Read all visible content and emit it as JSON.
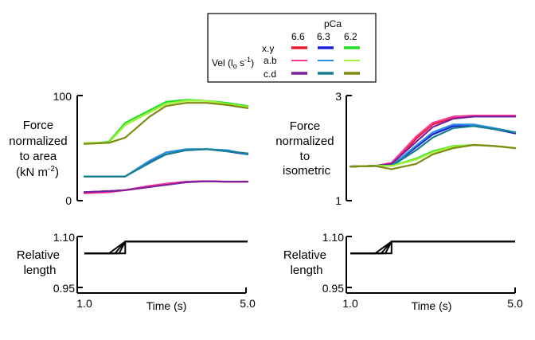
{
  "chart_data": [
    {
      "type": "line",
      "panel": "force-area",
      "ylabel_lines": [
        "Force",
        "normalized",
        "to area",
        "(kN m",
        "-2",
        ")"
      ],
      "yticks": [
        "100",
        "0"
      ],
      "ylim": [
        0,
        100
      ],
      "xlim": [
        1.0,
        5.0
      ],
      "series": [
        {
          "group": "pCa 6.6",
          "code": "x",
          "color": "#e8192c",
          "x": [
            1.0,
            1.6,
            2.0,
            2.6,
            3.0,
            3.5,
            4.0,
            4.5,
            5.0
          ],
          "values": [
            8,
            9,
            10,
            14,
            16,
            18,
            18.5,
            18,
            18
          ]
        },
        {
          "group": "pCa 6.6",
          "code": "y",
          "color": "#e8192c",
          "x": [
            1.0,
            1.6,
            2.0,
            2.6,
            3.0,
            3.5,
            4.0,
            4.5,
            5.0
          ],
          "values": [
            8,
            9,
            10,
            13,
            16,
            18,
            18.5,
            18,
            18
          ]
        },
        {
          "group": "pCa 6.6",
          "code": "a",
          "color": "#ff3a94",
          "x": [
            1.0,
            1.6,
            2.0,
            2.6,
            3.0,
            3.5,
            4.0,
            4.5,
            5.0
          ],
          "values": [
            7,
            8,
            10,
            14,
            16,
            18,
            18.5,
            18,
            18
          ]
        },
        {
          "group": "pCa 6.6",
          "code": "c",
          "color": "#7b1fa2",
          "x": [
            1.0,
            1.6,
            2.0,
            2.6,
            3.0,
            3.5,
            4.0,
            4.5,
            5.0
          ],
          "values": [
            8,
            9,
            10,
            13,
            15,
            17.5,
            18.5,
            18,
            18
          ]
        },
        {
          "group": "pCa 6.3",
          "code": "x",
          "color": "#1b1fd8",
          "x": [
            1.0,
            1.6,
            2.0,
            2.6,
            3.0,
            3.5,
            4.0,
            4.5,
            5.0
          ],
          "values": [
            23,
            23,
            23,
            37,
            44,
            48,
            49,
            47,
            44
          ]
        },
        {
          "group": "pCa 6.3",
          "code": "a",
          "color": "#2a8de6",
          "x": [
            1.0,
            1.6,
            2.0,
            2.6,
            3.0,
            3.5,
            4.0,
            4.5,
            5.0
          ],
          "values": [
            23,
            23,
            23,
            38,
            46,
            49,
            49,
            48,
            44
          ]
        },
        {
          "group": "pCa 6.3",
          "code": "c",
          "color": "#15808a",
          "x": [
            1.0,
            1.6,
            2.0,
            2.6,
            3.0,
            3.5,
            4.0,
            4.5,
            5.0
          ],
          "values": [
            23,
            23,
            23,
            36,
            44,
            48,
            49,
            47,
            45
          ]
        },
        {
          "group": "pCa 6.2",
          "code": "x",
          "color": "#22e022",
          "x": [
            1.0,
            1.6,
            2.0,
            2.6,
            3.0,
            3.5,
            4.0,
            4.5,
            5.0
          ],
          "values": [
            54,
            56,
            74,
            86,
            94,
            96,
            95,
            93,
            90
          ]
        },
        {
          "group": "pCa 6.2",
          "code": "a",
          "color": "#a4f23a",
          "x": [
            1.0,
            1.6,
            2.0,
            2.6,
            3.0,
            3.5,
            4.0,
            4.5,
            5.0
          ],
          "values": [
            55,
            55,
            72,
            84,
            92,
            95,
            95,
            92,
            89
          ]
        },
        {
          "group": "pCa 6.2",
          "code": "c",
          "color": "#7e8a10",
          "x": [
            1.0,
            1.6,
            2.0,
            2.6,
            3.0,
            3.5,
            4.0,
            4.5,
            5.0
          ],
          "values": [
            54,
            55,
            60,
            80,
            90,
            93,
            93,
            91,
            88
          ]
        }
      ]
    },
    {
      "type": "line",
      "panel": "force-isometric",
      "ylabel_lines": [
        "Force",
        "normalized",
        "to",
        "isometric"
      ],
      "yticks": [
        "3",
        "1"
      ],
      "ylim": [
        1,
        3
      ],
      "xlim": [
        1.0,
        5.0
      ],
      "series": [
        {
          "group": "pCa 6.6",
          "code": "x",
          "color": "#e8192c",
          "x": [
            1.0,
            1.6,
            2.0,
            2.6,
            3.0,
            3.5,
            4.0,
            4.5,
            5.0
          ],
          "values": [
            1.65,
            1.66,
            1.68,
            2.18,
            2.45,
            2.58,
            2.62,
            2.62,
            2.62
          ]
        },
        {
          "group": "pCa 6.6",
          "code": "a",
          "color": "#ff3a94",
          "x": [
            1.0,
            1.6,
            2.0,
            2.6,
            3.0,
            3.5,
            4.0,
            4.5,
            5.0
          ],
          "values": [
            1.65,
            1.66,
            1.72,
            2.22,
            2.48,
            2.6,
            2.62,
            2.62,
            2.62
          ]
        },
        {
          "group": "pCa 6.6",
          "code": "c",
          "color": "#7b1fa2",
          "x": [
            1.0,
            1.6,
            2.0,
            2.6,
            3.0,
            3.5,
            4.0,
            4.5,
            5.0
          ],
          "values": [
            1.65,
            1.66,
            1.7,
            2.12,
            2.4,
            2.56,
            2.6,
            2.6,
            2.6
          ]
        },
        {
          "group": "pCa 6.3",
          "code": "x",
          "color": "#1b1fd8",
          "x": [
            1.0,
            1.6,
            2.0,
            2.6,
            3.0,
            3.5,
            4.0,
            4.5,
            5.0
          ],
          "values": [
            1.65,
            1.66,
            1.66,
            2.02,
            2.26,
            2.42,
            2.42,
            2.36,
            2.28
          ]
        },
        {
          "group": "pCa 6.3",
          "code": "a",
          "color": "#2a8de6",
          "x": [
            1.0,
            1.6,
            2.0,
            2.6,
            3.0,
            3.5,
            4.0,
            4.5,
            5.0
          ],
          "values": [
            1.65,
            1.66,
            1.66,
            2.05,
            2.3,
            2.45,
            2.45,
            2.38,
            2.3
          ]
        },
        {
          "group": "pCa 6.3",
          "code": "c",
          "color": "#15808a",
          "x": [
            1.0,
            1.6,
            2.0,
            2.6,
            3.0,
            3.5,
            4.0,
            4.5,
            5.0
          ],
          "values": [
            1.65,
            1.66,
            1.66,
            1.96,
            2.2,
            2.38,
            2.42,
            2.36,
            2.3
          ]
        },
        {
          "group": "pCa 6.2",
          "code": "x",
          "color": "#22e022",
          "x": [
            1.0,
            1.6,
            2.0,
            2.6,
            3.0,
            3.5,
            4.0,
            4.5,
            5.0
          ],
          "values": [
            1.65,
            1.66,
            1.66,
            1.8,
            1.94,
            2.04,
            2.06,
            2.04,
            2.0
          ]
        },
        {
          "group": "pCa 6.2",
          "code": "a",
          "color": "#a4f23a",
          "x": [
            1.0,
            1.6,
            2.0,
            2.6,
            3.0,
            3.5,
            4.0,
            4.5,
            5.0
          ],
          "values": [
            1.65,
            1.66,
            1.66,
            1.78,
            1.92,
            2.03,
            2.06,
            2.04,
            2.0
          ]
        },
        {
          "group": "pCa 6.2",
          "code": "c",
          "color": "#7e8a10",
          "x": [
            1.0,
            1.6,
            2.0,
            2.6,
            3.0,
            3.5,
            4.0,
            4.5,
            5.0
          ],
          "values": [
            1.65,
            1.66,
            1.6,
            1.7,
            1.88,
            2.0,
            2.06,
            2.04,
            2.0
          ]
        }
      ]
    },
    {
      "type": "line",
      "panel": "length-left",
      "ylabel_lines": [
        "Relative",
        "length"
      ],
      "yticks": [
        "1.10",
        "0.95"
      ],
      "xticks": [
        "1.0",
        "5.0"
      ],
      "xlabel": "Time (s)",
      "ylim": [
        0.95,
        1.1
      ],
      "xlim": [
        1.0,
        5.0
      ],
      "series": [
        {
          "x": [
            1.0,
            1.6,
            2.0,
            2.0,
            5.0
          ],
          "values": [
            1.05,
            1.05,
            1.05,
            1.085,
            1.085
          ]
        },
        {
          "x": [
            1.0,
            1.6,
            2.0,
            5.0
          ],
          "values": [
            1.05,
            1.05,
            1.085,
            1.085
          ]
        },
        {
          "x": [
            1.0,
            1.75,
            2.0,
            5.0
          ],
          "values": [
            1.05,
            1.05,
            1.085,
            1.085
          ]
        },
        {
          "x": [
            1.0,
            1.85,
            2.0,
            5.0
          ],
          "values": [
            1.05,
            1.05,
            1.085,
            1.085
          ]
        }
      ]
    },
    {
      "type": "line",
      "panel": "length-right",
      "ylabel_lines": [
        "Relative",
        "length"
      ],
      "yticks": [
        "1.10",
        "0.95"
      ],
      "xticks": [
        "1.0",
        "5.0"
      ],
      "xlabel": "Time (s)",
      "ylim": [
        0.95,
        1.1
      ],
      "xlim": [
        1.0,
        5.0
      ],
      "series": [
        {
          "x": [
            1.0,
            1.6,
            2.0,
            2.0,
            5.0
          ],
          "values": [
            1.05,
            1.05,
            1.05,
            1.085,
            1.085
          ]
        },
        {
          "x": [
            1.0,
            1.6,
            2.0,
            5.0
          ],
          "values": [
            1.05,
            1.05,
            1.085,
            1.085
          ]
        },
        {
          "x": [
            1.0,
            1.75,
            2.0,
            5.0
          ],
          "values": [
            1.05,
            1.05,
            1.085,
            1.085
          ]
        },
        {
          "x": [
            1.0,
            1.85,
            2.0,
            5.0
          ],
          "values": [
            1.05,
            1.05,
            1.085,
            1.085
          ]
        }
      ]
    }
  ],
  "legend": {
    "pca_label": "pCa",
    "pca_values": [
      "6.6",
      "6.3",
      "6.2"
    ],
    "vel_label_prefix": "Vel (l",
    "vel_label_sub": "o",
    "vel_label_mid": " s",
    "vel_label_sup": "-1",
    "vel_label_suffix": ")",
    "rows": [
      {
        "label": "x.y",
        "colors": [
          "#e8192c",
          "#1b1fd8",
          "#22e022"
        ]
      },
      {
        "label": "a.b",
        "colors": [
          "#ff3a94",
          "#2a8de6",
          "#a4f23a"
        ]
      },
      {
        "label": "c.d",
        "colors": [
          "#7b1fa2",
          "#15808a",
          "#7e8a10"
        ]
      }
    ]
  }
}
